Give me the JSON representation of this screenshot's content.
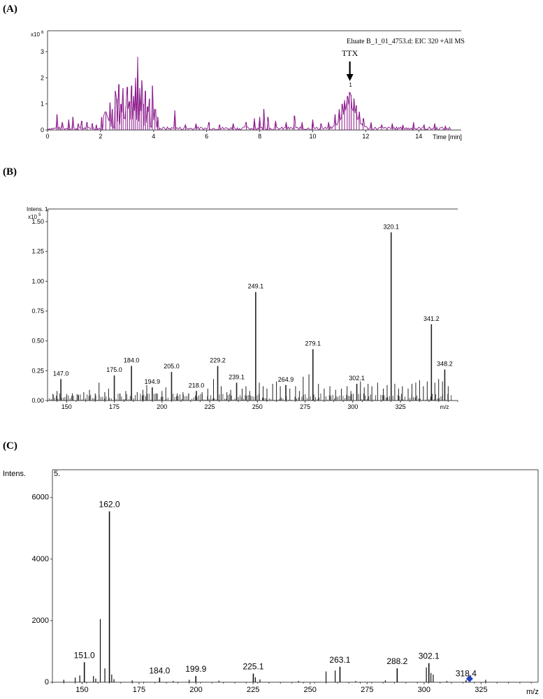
{
  "panels": {
    "a": {
      "letter": "(A)"
    },
    "b": {
      "letter": "(B)"
    },
    "c": {
      "letter": "(C)"
    }
  },
  "chart_data": [
    {
      "id": "A",
      "type": "line",
      "color": "#8b1a8b",
      "legend": "Eluate B_1_01_4753.d: EIC 320 +All MS",
      "annotation": "TTX",
      "annotation_at": 11.4,
      "peak_marker": "1",
      "xlabel": "Time [min]",
      "ylabel": "",
      "y_exponent_label": "x10",
      "y_exponent_power": "6",
      "xlim": [
        0,
        15.6
      ],
      "ylim": [
        0,
        3.8
      ],
      "x_ticks": [
        0,
        2,
        4,
        6,
        8,
        10,
        12,
        14
      ],
      "x_tick_labels": [
        "0",
        "2",
        "4",
        "6",
        "8",
        "10",
        "12",
        "14"
      ],
      "y_ticks": [
        0,
        1,
        2,
        3
      ],
      "y_tick_labels": [
        "0",
        "1",
        "2",
        "3"
      ],
      "spikes": [
        [
          0.35,
          0.6
        ],
        [
          0.55,
          0.3
        ],
        [
          0.8,
          0.4
        ],
        [
          0.95,
          0.5
        ],
        [
          1.15,
          0.25
        ],
        [
          1.3,
          0.35
        ],
        [
          1.5,
          0.3
        ],
        [
          1.7,
          0.25
        ],
        [
          1.85,
          0.2
        ],
        [
          2.05,
          0.5
        ],
        [
          2.2,
          0.7
        ],
        [
          2.35,
          1.05
        ],
        [
          2.45,
          0.8
        ],
        [
          2.55,
          1.5
        ],
        [
          2.62,
          1.2
        ],
        [
          2.7,
          1.75
        ],
        [
          2.78,
          1.0
        ],
        [
          2.85,
          1.6
        ],
        [
          2.95,
          0.9
        ],
        [
          3.02,
          1.65
        ],
        [
          3.1,
          1.1
        ],
        [
          3.18,
          1.7
        ],
        [
          3.25,
          1.3
        ],
        [
          3.32,
          2.0
        ],
        [
          3.4,
          2.8
        ],
        [
          3.48,
          1.6
        ],
        [
          3.55,
          1.9
        ],
        [
          3.62,
          1.0
        ],
        [
          3.7,
          1.5
        ],
        [
          3.78,
          0.9
        ],
        [
          3.85,
          1.2
        ],
        [
          3.95,
          1.7
        ],
        [
          4.05,
          0.8
        ],
        [
          4.15,
          0.5
        ],
        [
          4.8,
          0.75
        ],
        [
          5.2,
          0.2
        ],
        [
          5.6,
          0.25
        ],
        [
          6.1,
          0.3
        ],
        [
          6.5,
          0.2
        ],
        [
          7.0,
          0.25
        ],
        [
          7.5,
          0.3
        ],
        [
          7.8,
          0.45
        ],
        [
          8.0,
          0.5
        ],
        [
          8.15,
          0.8
        ],
        [
          8.3,
          0.5
        ],
        [
          8.6,
          0.35
        ],
        [
          9.0,
          0.3
        ],
        [
          9.3,
          0.55
        ],
        [
          9.6,
          0.3
        ],
        [
          10.0,
          0.4
        ],
        [
          10.3,
          0.25
        ],
        [
          10.6,
          0.3
        ],
        [
          10.85,
          0.6
        ],
        [
          11.0,
          0.8
        ],
        [
          11.1,
          1.0
        ],
        [
          11.2,
          1.15
        ],
        [
          11.3,
          1.3
        ],
        [
          11.38,
          1.45
        ],
        [
          11.45,
          1.35
        ],
        [
          11.55,
          1.2
        ],
        [
          11.65,
          0.95
        ],
        [
          11.75,
          0.7
        ],
        [
          11.9,
          0.45
        ],
        [
          12.2,
          0.3
        ],
        [
          12.6,
          0.2
        ],
        [
          13.0,
          0.25
        ],
        [
          13.4,
          0.2
        ],
        [
          13.8,
          0.3
        ],
        [
          14.2,
          0.2
        ],
        [
          14.6,
          0.25
        ],
        [
          15.0,
          0.15
        ]
      ]
    },
    {
      "id": "B",
      "type": "bar",
      "color": "#222222",
      "ylabel": "Intens.",
      "y_corner_label": "1.",
      "y_exponent_label": "x10",
      "y_exponent_power": "5",
      "xlabel": "m/z",
      "xlim": [
        140,
        355
      ],
      "ylim": [
        0,
        1.6
      ],
      "x_ticks": [
        150,
        175,
        200,
        225,
        250,
        275,
        300,
        325
      ],
      "x_tick_labels": [
        "150",
        "175",
        "200",
        "225",
        "250",
        "275",
        "300",
        "325"
      ],
      "y_ticks": [
        0,
        0.25,
        0.5,
        0.75,
        1.0,
        1.25,
        1.5
      ],
      "y_tick_labels": [
        "0.00",
        "0.25",
        "0.50",
        "0.75",
        "1.00",
        "1.25",
        "1.50"
      ],
      "labeled_peaks": [
        {
          "mz": 147.0,
          "label": "147.0",
          "value": 0.18
        },
        {
          "mz": 175.0,
          "label": "175.0",
          "value": 0.21
        },
        {
          "mz": 184.0,
          "label": "184.0",
          "value": 0.29
        },
        {
          "mz": 194.9,
          "label": "194.9",
          "value": 0.11
        },
        {
          "mz": 205.0,
          "label": "205.0",
          "value": 0.24
        },
        {
          "mz": 218.0,
          "label": "218.0",
          "value": 0.08
        },
        {
          "mz": 229.2,
          "label": "229.2",
          "value": 0.29
        },
        {
          "mz": 239.1,
          "label": "239.1",
          "value": 0.15
        },
        {
          "mz": 249.1,
          "label": "249.1",
          "value": 0.91
        },
        {
          "mz": 264.9,
          "label": "264.9",
          "value": 0.13
        },
        {
          "mz": 279.1,
          "label": "279.1",
          "value": 0.43
        },
        {
          "mz": 302.1,
          "label": "302.1",
          "value": 0.14
        },
        {
          "mz": 320.1,
          "label": "320.1",
          "value": 1.41
        },
        {
          "mz": 341.2,
          "label": "341.2",
          "value": 0.64
        },
        {
          "mz": 348.2,
          "label": "348.2",
          "value": 0.26
        }
      ],
      "minor_peaks": [
        [
          143,
          0.05
        ],
        [
          145,
          0.08
        ],
        [
          150,
          0.04
        ],
        [
          153,
          0.06
        ],
        [
          156,
          0.05
        ],
        [
          159,
          0.07
        ],
        [
          162,
          0.09
        ],
        [
          165,
          0.06
        ],
        [
          167,
          0.15
        ],
        [
          170,
          0.07
        ],
        [
          172,
          0.1
        ],
        [
          178,
          0.06
        ],
        [
          181,
          0.08
        ],
        [
          187,
          0.07
        ],
        [
          190,
          0.09
        ],
        [
          192,
          0.13
        ],
        [
          197,
          0.06
        ],
        [
          200,
          0.08
        ],
        [
          202,
          0.11
        ],
        [
          208,
          0.06
        ],
        [
          211,
          0.07
        ],
        [
          214,
          0.06
        ],
        [
          221,
          0.07
        ],
        [
          224,
          0.1
        ],
        [
          227,
          0.18
        ],
        [
          231,
          0.12
        ],
        [
          234,
          0.07
        ],
        [
          236,
          0.09
        ],
        [
          242,
          0.1
        ],
        [
          244,
          0.12
        ],
        [
          246,
          0.08
        ],
        [
          251,
          0.15
        ],
        [
          253,
          0.12
        ],
        [
          255,
          0.1
        ],
        [
          258,
          0.14
        ],
        [
          260,
          0.16
        ],
        [
          262,
          0.12
        ],
        [
          267,
          0.1
        ],
        [
          270,
          0.12
        ],
        [
          272,
          0.08
        ],
        [
          274,
          0.2
        ],
        [
          277,
          0.22
        ],
        [
          282,
          0.14
        ],
        [
          285,
          0.1
        ],
        [
          288,
          0.12
        ],
        [
          291,
          0.09
        ],
        [
          294,
          0.1
        ],
        [
          297,
          0.12
        ],
        [
          299,
          0.08
        ],
        [
          304,
          0.16
        ],
        [
          306,
          0.11
        ],
        [
          308,
          0.14
        ],
        [
          310,
          0.12
        ],
        [
          313,
          0.15
        ],
        [
          316,
          0.1
        ],
        [
          318,
          0.13
        ],
        [
          322,
          0.14
        ],
        [
          324,
          0.1
        ],
        [
          326,
          0.12
        ],
        [
          329,
          0.1
        ],
        [
          331,
          0.14
        ],
        [
          333,
          0.15
        ],
        [
          335,
          0.17
        ],
        [
          337,
          0.12
        ],
        [
          339,
          0.16
        ],
        [
          343,
          0.15
        ],
        [
          345,
          0.18
        ],
        [
          347,
          0.16
        ],
        [
          350,
          0.12
        ]
      ]
    },
    {
      "id": "C",
      "type": "bar",
      "color": "#111111",
      "ylabel": "Intens.",
      "y_corner_label": "5.",
      "xlabel": "m/z",
      "xlim": [
        137,
        350
      ],
      "ylim": [
        0,
        6900
      ],
      "x_ticks": [
        150,
        175,
        200,
        225,
        250,
        275,
        300,
        325
      ],
      "x_tick_labels": [
        "150",
        "175",
        "200",
        "225",
        "250",
        "275",
        "300",
        "325"
      ],
      "y_ticks": [
        0,
        2000,
        4000,
        6000
      ],
      "y_tick_labels": [
        "0",
        "2000",
        "4000",
        "6000"
      ],
      "precursor_marker": {
        "mz": 318.4,
        "color": "#1f3fbf"
      },
      "labeled_peaks": [
        {
          "mz": 151.0,
          "label": "151.0",
          "value": 650
        },
        {
          "mz": 162.0,
          "label": "162.0",
          "value": 5550
        },
        {
          "mz": 184.0,
          "label": "184.0",
          "value": 150
        },
        {
          "mz": 199.9,
          "label": "199.9",
          "value": 200
        },
        {
          "mz": 225.1,
          "label": "225.1",
          "value": 280
        },
        {
          "mz": 263.1,
          "label": "263.1",
          "value": 500
        },
        {
          "mz": 288.2,
          "label": "288.2",
          "value": 450
        },
        {
          "mz": 302.1,
          "label": "302.1",
          "value": 620
        },
        {
          "mz": 318.4,
          "label": "318.4",
          "value": 60
        }
      ],
      "minor_peaks": [
        [
          142,
          80
        ],
        [
          147,
          150
        ],
        [
          149,
          220
        ],
        [
          155,
          200
        ],
        [
          156,
          120
        ],
        [
          158,
          2050
        ],
        [
          160,
          450
        ],
        [
          163,
          250
        ],
        [
          164,
          100
        ],
        [
          172,
          60
        ],
        [
          190,
          40
        ],
        [
          197,
          80
        ],
        [
          210,
          50
        ],
        [
          226,
          160
        ],
        [
          228,
          90
        ],
        [
          245,
          40
        ],
        [
          257,
          350
        ],
        [
          261,
          380
        ],
        [
          270,
          40
        ],
        [
          283,
          60
        ],
        [
          301,
          480
        ],
        [
          303,
          300
        ],
        [
          304,
          250
        ],
        [
          310,
          40
        ],
        [
          327,
          80
        ]
      ]
    }
  ]
}
